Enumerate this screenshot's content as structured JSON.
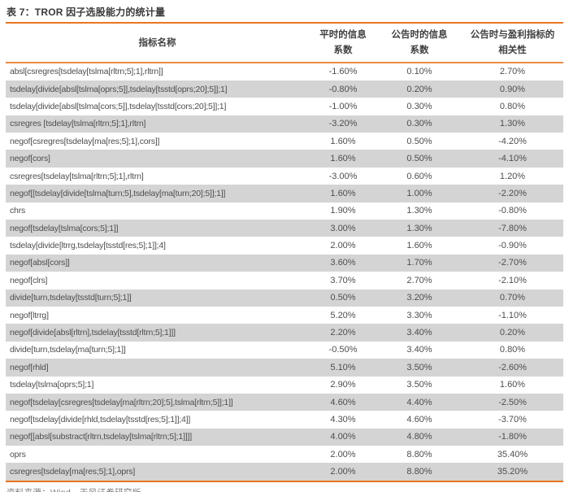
{
  "title": "表 7：TROR 因子选股能力的统计量",
  "footer": "资料来源：Wind，天风证券研究所",
  "colors": {
    "accent": "#E87722",
    "stripe": "#D4D4D4"
  },
  "table": {
    "headers": {
      "name": "指标名称",
      "normal_ic_l1": "平时的信息",
      "normal_ic_l2": "系数",
      "announce_ic_l1": "公告时的信息",
      "announce_ic_l2": "系数",
      "profit_corr_l1": "公告时与盈利指标的",
      "profit_corr_l2": "相关性"
    },
    "rows": [
      {
        "name": "absl[csregres[tsdelay[tslma[rltrn;5];1],rltrn]]",
        "normal_ic": "-1.60%",
        "announce_ic": "0.10%",
        "profit_corr": "2.70%"
      },
      {
        "name": "tsdelay[divide[absl[tslma[oprs;5]],tsdelay[tsstd[oprs;20];5]];1]",
        "normal_ic": "-0.80%",
        "announce_ic": "0.20%",
        "profit_corr": "0.90%"
      },
      {
        "name": "tsdelay[divide[absl[tslma[cors;5]],tsdelay[tsstd[cors;20];5]];1]",
        "normal_ic": "-1.00%",
        "announce_ic": "0.30%",
        "profit_corr": "0.80%"
      },
      {
        "name": "csregres [tsdelay[tslma[rltrn;5];1],rltrn]",
        "normal_ic": "-3.20%",
        "announce_ic": "0.30%",
        "profit_corr": "1.30%"
      },
      {
        "name": "negof[csregres[tsdelay[ma[res;5];1],cors]]",
        "normal_ic": "1.60%",
        "announce_ic": "0.50%",
        "profit_corr": "-4.20%"
      },
      {
        "name": "negof[cors]",
        "normal_ic": "1.60%",
        "announce_ic": "0.50%",
        "profit_corr": "-4.10%"
      },
      {
        "name": "csregres[tsdelay[tslma[rltrn;5];1],rltrn]",
        "normal_ic": "-3.00%",
        "announce_ic": "0.60%",
        "profit_corr": "1.20%"
      },
      {
        "name": "negof[[tsdelay[divide[tslma[turn;5],tsdelay[ma[turn;20];5]];1]]",
        "normal_ic": "1.60%",
        "announce_ic": "1.00%",
        "profit_corr": "-2.20%"
      },
      {
        "name": "chrs",
        "normal_ic": "1.90%",
        "announce_ic": "1.30%",
        "profit_corr": "-0.80%"
      },
      {
        "name": "negof[tsdelay[tslma[cors;5];1]]",
        "normal_ic": "3.00%",
        "announce_ic": "1.30%",
        "profit_corr": "-7.80%"
      },
      {
        "name": "tsdelay[divide[ltrrg,tsdelay[tsstd[res;5];1]];4]",
        "normal_ic": "2.00%",
        "announce_ic": "1.60%",
        "profit_corr": "-0.90%"
      },
      {
        "name": "negof[absl[cors]]",
        "normal_ic": "3.60%",
        "announce_ic": "1.70%",
        "profit_corr": "-2.70%"
      },
      {
        "name": "negof[clrs]",
        "normal_ic": "3.70%",
        "announce_ic": "2.70%",
        "profit_corr": "-2.10%"
      },
      {
        "name": "divide[turn,tsdelay[tsstd[turn;5];1]]",
        "normal_ic": "0.50%",
        "announce_ic": "3.20%",
        "profit_corr": "0.70%"
      },
      {
        "name": "negof[ltrrg]",
        "normal_ic": "5.20%",
        "announce_ic": "3.30%",
        "profit_corr": "-1.10%"
      },
      {
        "name": "negof[divide[absl[rltrn],tsdelay[tsstd[rltrn;5];1]]]",
        "normal_ic": "2.20%",
        "announce_ic": "3.40%",
        "profit_corr": "0.20%"
      },
      {
        "name": "divide[turn,tsdelay[ma[turn;5];1]]",
        "normal_ic": "-0.50%",
        "announce_ic": "3.40%",
        "profit_corr": "0.80%"
      },
      {
        "name": "negof[rhld]",
        "normal_ic": "5.10%",
        "announce_ic": "3.50%",
        "profit_corr": "-2.60%"
      },
      {
        "name": "tsdelay[tslma[oprs;5];1]",
        "normal_ic": "2.90%",
        "announce_ic": "3.50%",
        "profit_corr": "1.60%"
      },
      {
        "name": "negof[tsdelay[csregres[tsdelay[ma[rltrn;20];5],tslma[rltrn;5]];1]]",
        "normal_ic": "4.60%",
        "announce_ic": "4.40%",
        "profit_corr": "-2.50%"
      },
      {
        "name": "negof[tsdelay[divide[rhld,tsdelay[tsstd[res;5];1]];4]]",
        "normal_ic": "4.30%",
        "announce_ic": "4.60%",
        "profit_corr": "-3.70%"
      },
      {
        "name": "negof[[absl[substract[rltrn,tsdelay[tslma[rltrn;5];1]]]]",
        "normal_ic": "4.00%",
        "announce_ic": "4.80%",
        "profit_corr": "-1.80%"
      },
      {
        "name": "oprs",
        "normal_ic": "2.00%",
        "announce_ic": "8.80%",
        "profit_corr": "35.40%"
      },
      {
        "name": "csregres[tsdelay[ma[res;5];1],oprs]",
        "normal_ic": "2.00%",
        "announce_ic": "8.80%",
        "profit_corr": "35.20%"
      }
    ]
  }
}
